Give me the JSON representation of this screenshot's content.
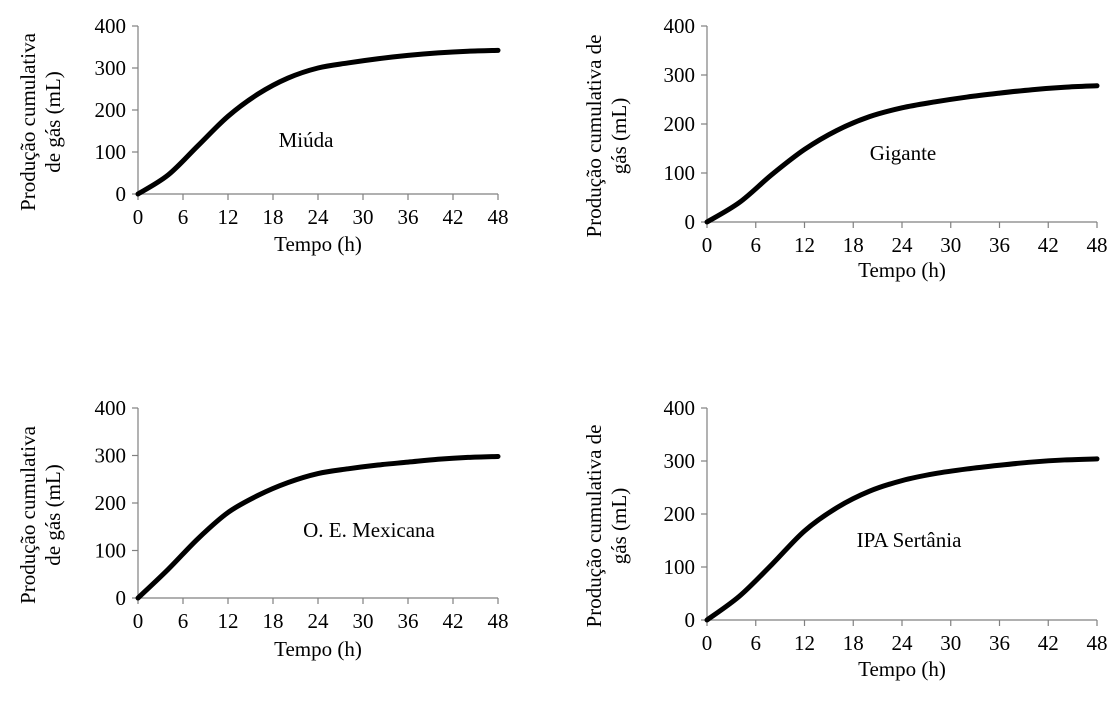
{
  "colors": {
    "line": "#000000",
    "axis": "#808080"
  },
  "chart_data": [
    {
      "type": "line",
      "annotation": "Miúda",
      "xlabel": "Tempo (h)",
      "ylabel_lines": [
        "Produção cumulativa",
        "de gás (mL)"
      ],
      "xlim": [
        0,
        48
      ],
      "ylim": [
        0,
        400
      ],
      "x_ticks": [
        0,
        6,
        12,
        18,
        24,
        30,
        36,
        42,
        48
      ],
      "y_ticks": [
        0,
        100,
        200,
        300,
        400
      ],
      "grid": false,
      "series": [
        {
          "x": [
            0,
            4,
            8,
            12,
            16,
            20,
            24,
            28,
            32,
            36,
            40,
            44,
            48
          ],
          "y": [
            0,
            45,
            115,
            185,
            238,
            276,
            300,
            312,
            322,
            330,
            336,
            340,
            342
          ]
        }
      ]
    },
    {
      "type": "line",
      "annotation": "Gigante",
      "xlabel": "Tempo (h)",
      "ylabel_lines": [
        "Produção cumulativa de",
        "gás (mL)"
      ],
      "xlim": [
        0,
        48
      ],
      "ylim": [
        0,
        400
      ],
      "x_ticks": [
        0,
        6,
        12,
        18,
        24,
        30,
        36,
        42,
        48
      ],
      "y_ticks": [
        0,
        100,
        200,
        300,
        400
      ],
      "grid": false,
      "series": [
        {
          "x": [
            0,
            4,
            8,
            12,
            16,
            20,
            24,
            28,
            32,
            36,
            40,
            44,
            48
          ],
          "y": [
            0,
            40,
            97,
            148,
            187,
            215,
            233,
            245,
            255,
            263,
            270,
            275,
            278
          ]
        }
      ]
    },
    {
      "type": "line",
      "annotation": "O. E. Mexicana",
      "xlabel": "Tempo (h)",
      "ylabel_lines": [
        "Produção cumulativa",
        "de gás (mL)"
      ],
      "xlim": [
        0,
        48
      ],
      "ylim": [
        0,
        400
      ],
      "x_ticks": [
        0,
        6,
        12,
        18,
        24,
        30,
        36,
        42,
        48
      ],
      "y_ticks": [
        0,
        100,
        200,
        300,
        400
      ],
      "grid": false,
      "series": [
        {
          "x": [
            0,
            4,
            8,
            12,
            16,
            20,
            24,
            28,
            32,
            36,
            40,
            44,
            48
          ],
          "y": [
            0,
            60,
            125,
            180,
            216,
            243,
            262,
            272,
            280,
            286,
            292,
            296,
            298
          ]
        }
      ]
    },
    {
      "type": "line",
      "annotation": "IPA Sertânia",
      "xlabel": "Tempo (h)",
      "ylabel_lines": [
        "Produção cumulativa de",
        "gás (mL)"
      ],
      "xlim": [
        0,
        48
      ],
      "ylim": [
        0,
        400
      ],
      "x_ticks": [
        0,
        6,
        12,
        18,
        24,
        30,
        36,
        42,
        48
      ],
      "y_ticks": [
        0,
        100,
        200,
        300,
        400
      ],
      "grid": false,
      "series": [
        {
          "x": [
            0,
            4,
            8,
            12,
            16,
            20,
            24,
            28,
            32,
            36,
            40,
            44,
            48
          ],
          "y": [
            0,
            45,
            105,
            168,
            212,
            243,
            263,
            276,
            285,
            292,
            298,
            302,
            304
          ]
        }
      ]
    }
  ]
}
